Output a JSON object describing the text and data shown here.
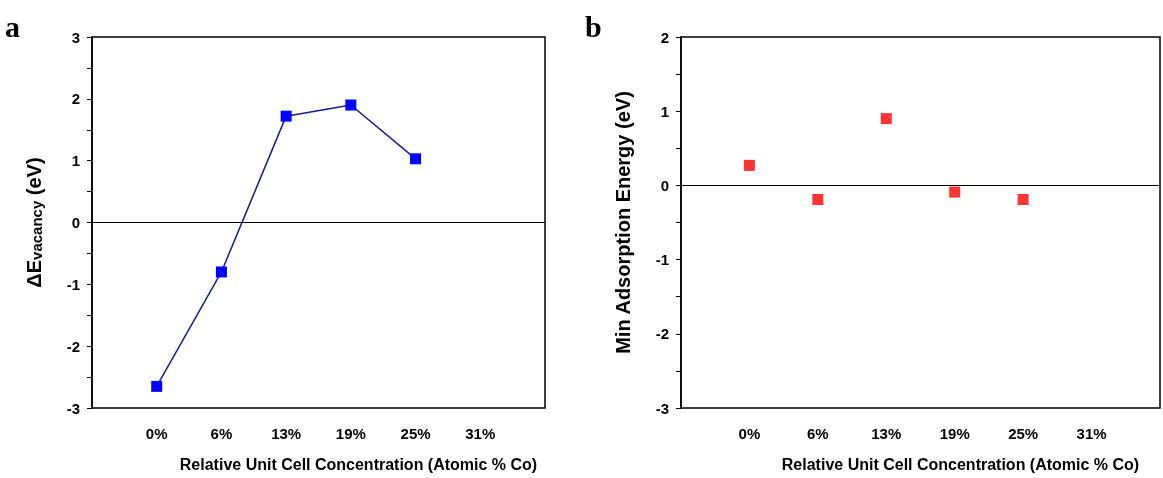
{
  "chart_data": [
    {
      "type": "line",
      "title": "a",
      "xlabel": "Relative Unit Cell Concentration (Atomic % Co)",
      "ylabel": "ΔE$_{vacancy}$ (eV)",
      "categories": [
        null,
        "0%",
        "6%",
        "13%",
        "19%",
        "25%",
        "31%",
        null
      ],
      "series": [
        {
          "color": "#0000ff",
          "values": [
            null,
            -2.65,
            -0.8,
            1.72,
            1.9,
            1.03,
            null,
            null
          ]
        }
      ],
      "ylim": [
        -3,
        3
      ],
      "yticks": [
        -3,
        {
          "value": -2.5,
          "label": null
        },
        -2,
        {
          "value": -1.5,
          "label": null
        },
        -1,
        {
          "value": -0.5,
          "label": null
        },
        0,
        {
          "value": 0.5,
          "label": null
        },
        1,
        {
          "value": 1.5,
          "label": null
        },
        2,
        {
          "value": 2.5,
          "label": null
        },
        3
      ],
      "ref_lines": [
        {
          "axis": "y",
          "value": 0,
          "color": "#000000"
        }
      ],
      "marker": "square",
      "grid": false
    },
    {
      "type": "scatter",
      "title": "b",
      "xlabel": "Relative Unit Cell Concentration (Atomic % Co)",
      "ylabel": "Min Adsorption Energy (eV)",
      "categories": [
        null,
        "0%",
        "6%",
        "13%",
        "19%",
        "25%",
        "31%",
        null
      ],
      "series": [
        {
          "color": "#ff0000",
          "values": [
            null,
            0.27,
            -0.19,
            0.9,
            -0.09,
            -0.19,
            null,
            null
          ]
        }
      ],
      "ylim": [
        -3,
        2
      ],
      "yticks": [
        -3,
        {
          "value": -2.5,
          "label": null
        },
        -2,
        {
          "value": -1.5,
          "label": null
        },
        -1,
        {
          "value": -0.5,
          "label": null
        },
        0,
        {
          "value": 0.5,
          "label": null
        },
        1,
        {
          "value": 1.5,
          "label": null
        },
        2
      ],
      "ref_lines": [
        {
          "axis": "y",
          "value": 0,
          "color": "#000000"
        }
      ],
      "marker": "square",
      "grid": false
    }
  ]
}
